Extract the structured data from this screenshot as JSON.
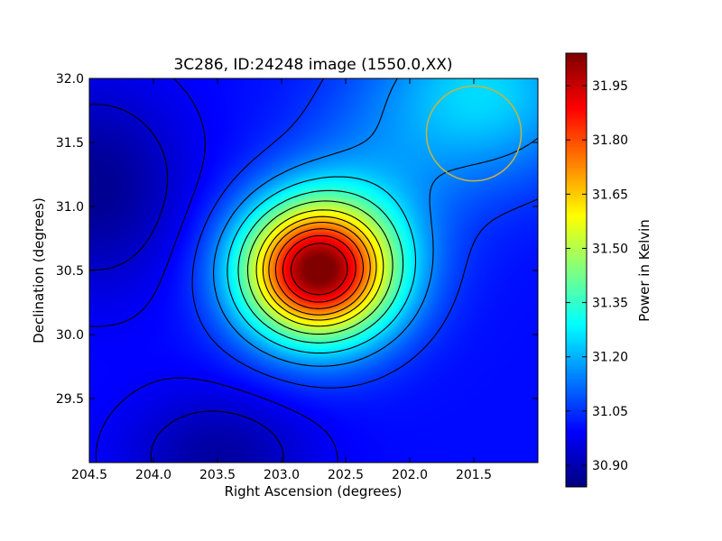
{
  "chart_data": {
    "type": "heatmap",
    "title": "3C286, ID:24248 image (1550.0,XX)",
    "xlabel": "Right Ascension (degrees)",
    "ylabel": "Declination (degrees)",
    "xlim": [
      204.5,
      201.0
    ],
    "ylim": [
      29.0,
      32.0
    ],
    "x_ticks": [
      204.5,
      204.0,
      203.5,
      203.0,
      202.5,
      202.0,
      201.5
    ],
    "x_tick_labels": [
      "204.5",
      "204.0",
      "203.5",
      "203.0",
      "202.5",
      "202.0",
      "201.5"
    ],
    "y_ticks": [
      29.5,
      30.0,
      30.5,
      31.0,
      31.5,
      32.0
    ],
    "y_tick_labels": [
      "29.5",
      "30.0",
      "30.5",
      "31.0",
      "31.5",
      "32.0"
    ],
    "colorbar": {
      "label": "Power in Kelvin",
      "colormap": "jet",
      "vmin": 30.84,
      "vmax": 32.04,
      "ticks": [
        30.9,
        31.05,
        31.2,
        31.35,
        31.5,
        31.65,
        31.8,
        31.95
      ],
      "tick_labels": [
        "30.90",
        "31.05",
        "31.20",
        "31.35",
        "31.50",
        "31.65",
        "31.80",
        "31.95"
      ]
    },
    "background_level": 31.0,
    "features": [
      {
        "kind": "peak",
        "ra": 202.72,
        "dec": 30.5,
        "amplitude": 1.03,
        "sigma_ra": 0.42,
        "sigma_dec": 0.38
      },
      {
        "kind": "ridge",
        "ra": 201.4,
        "dec": 31.9,
        "amplitude": 0.24,
        "sigma_ra": 0.6,
        "sigma_dec": 0.5
      },
      {
        "kind": "ridge",
        "ra": 202.3,
        "dec": 31.1,
        "amplitude": 0.1,
        "sigma_ra": 0.5,
        "sigma_dec": 0.6
      },
      {
        "kind": "trough",
        "ra": 204.45,
        "dec": 31.15,
        "amplitude": -0.14,
        "sigma_ra": 0.5,
        "sigma_dec": 0.55
      },
      {
        "kind": "trough",
        "ra": 203.5,
        "dec": 29.05,
        "amplitude": -0.12,
        "sigma_ra": 0.5,
        "sigma_dec": 0.35
      }
    ],
    "contour_levels": [
      30.93,
      30.98,
      31.05,
      31.15,
      31.25,
      31.35,
      31.45,
      31.55,
      31.63,
      31.7,
      31.78,
      31.86,
      31.94
    ],
    "circle_marker": {
      "ra": 201.5,
      "dec": 31.57,
      "radius_deg": 0.37,
      "color": "#c8b43c"
    },
    "colors": {
      "contour": "#000000",
      "frame": "#000000"
    }
  }
}
